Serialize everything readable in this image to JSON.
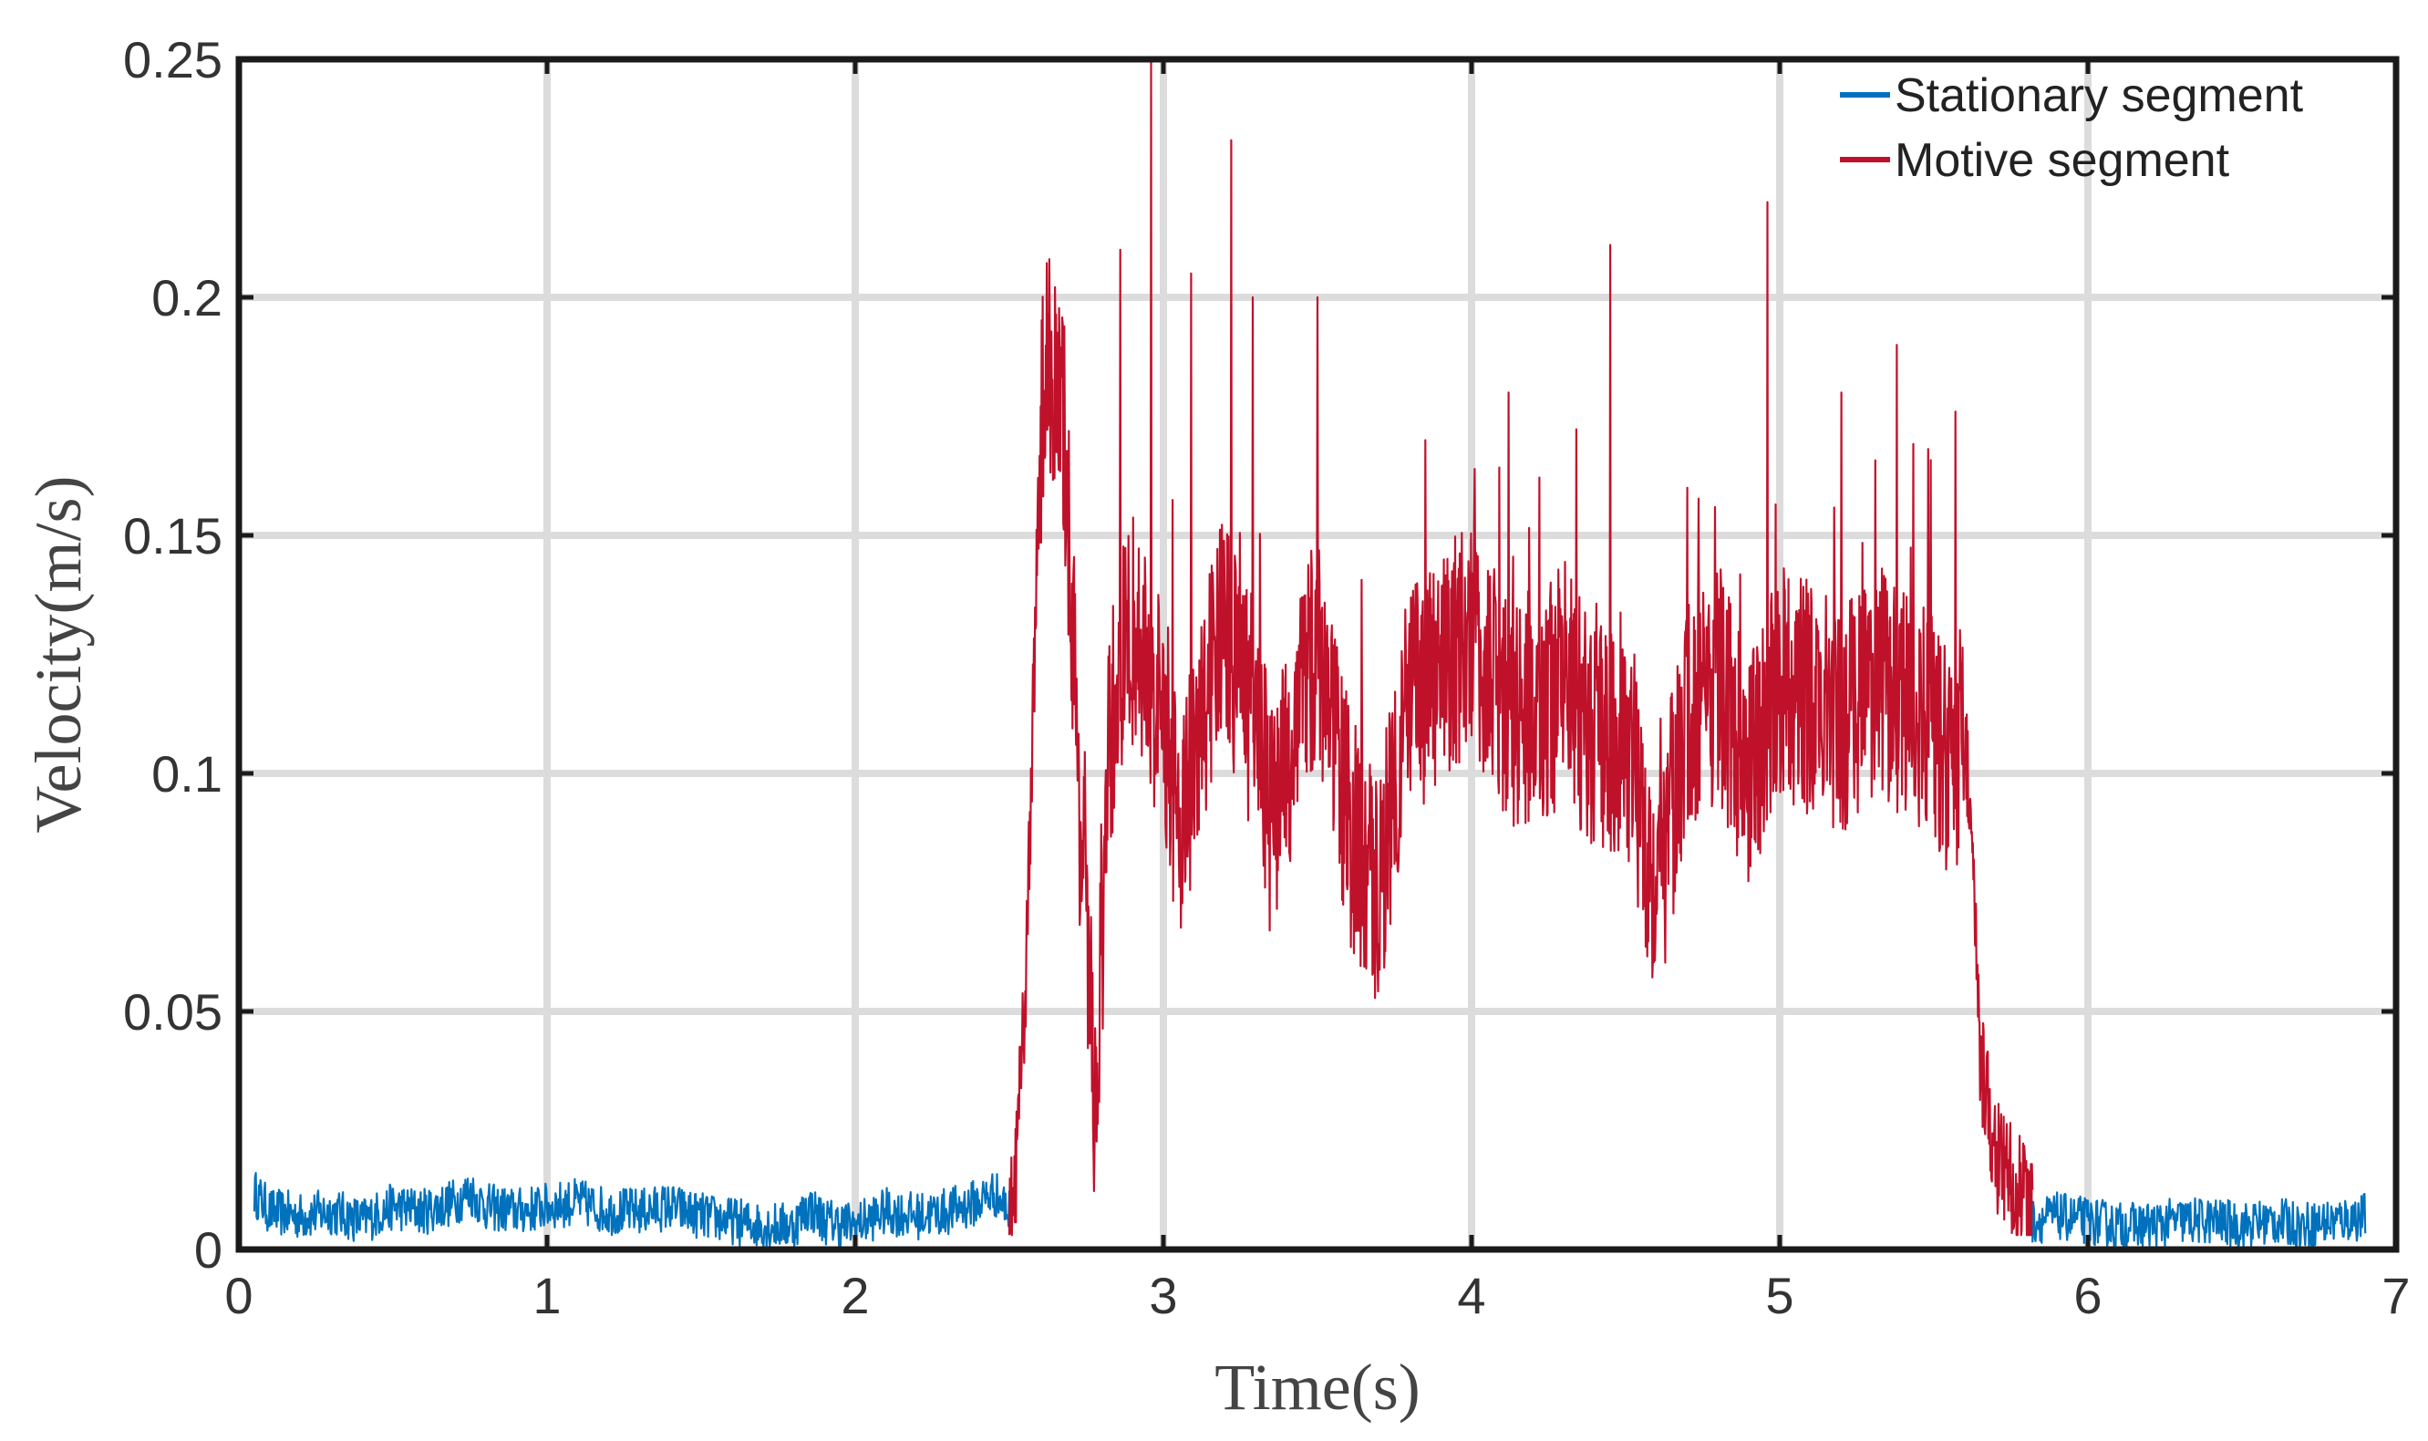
{
  "chart_data": {
    "type": "line",
    "xlabel": "Time(s)",
    "ylabel": "Velocity(m/s)",
    "xlim": [
      0,
      7
    ],
    "ylim": [
      0,
      0.25
    ],
    "x_ticks": [
      0,
      1,
      2,
      3,
      4,
      5,
      6,
      7
    ],
    "y_ticks": [
      0,
      0.05,
      0.1,
      0.15,
      0.2,
      0.25
    ],
    "x_tick_labels": [
      "0",
      "1",
      "2",
      "3",
      "4",
      "5",
      "6",
      "7"
    ],
    "y_tick_labels": [
      "0",
      "0.05",
      "0.1",
      "0.15",
      "0.2",
      "0.25"
    ],
    "grid": true,
    "legend_position": "top-right",
    "series": [
      {
        "name": "Stationary segment",
        "color": "#0072BD",
        "segments": [
          {
            "x": [
              0.05,
              0.1,
              0.2,
              0.3,
              0.4,
              0.5,
              0.6,
              0.7,
              0.75,
              0.8,
              0.9,
              1.0,
              1.1,
              1.2,
              1.3,
              1.4,
              1.5,
              1.6,
              1.7,
              1.8,
              1.85,
              1.9,
              2.0,
              2.1,
              2.2,
              2.3,
              2.4,
              2.45,
              2.5
            ],
            "y": [
              0.012,
              0.008,
              0.007,
              0.008,
              0.006,
              0.009,
              0.008,
              0.01,
              0.012,
              0.009,
              0.008,
              0.009,
              0.01,
              0.008,
              0.008,
              0.009,
              0.007,
              0.006,
              0.005,
              0.005,
              0.009,
              0.006,
              0.005,
              0.008,
              0.007,
              0.008,
              0.01,
              0.012,
              0.008
            ]
          },
          {
            "x": [
              5.82,
              5.9,
              6.0,
              6.1,
              6.2,
              6.3,
              6.4,
              6.5,
              6.6,
              6.7,
              6.8,
              6.9
            ],
            "y": [
              0.006,
              0.007,
              0.006,
              0.005,
              0.005,
              0.006,
              0.006,
              0.005,
              0.006,
              0.005,
              0.006,
              0.007
            ]
          }
        ],
        "noise_amplitude": 0.005
      },
      {
        "name": "Motive segment",
        "color": "#C0112B",
        "x": [
          2.5,
          2.52,
          2.55,
          2.58,
          2.6,
          2.62,
          2.65,
          2.68,
          2.7,
          2.73,
          2.76,
          2.78,
          2.8,
          2.82,
          2.85,
          2.9,
          2.95,
          3.0,
          3.05,
          3.1,
          3.15,
          3.2,
          3.25,
          3.3,
          3.35,
          3.4,
          3.45,
          3.5,
          3.55,
          3.6,
          3.65,
          3.7,
          3.75,
          3.8,
          3.9,
          4.0,
          4.1,
          4.2,
          4.3,
          4.4,
          4.5,
          4.6,
          4.7,
          4.8,
          4.9,
          5.0,
          5.1,
          5.2,
          5.3,
          5.4,
          5.5,
          5.55,
          5.6,
          5.62,
          5.65,
          5.7,
          5.75,
          5.8,
          5.82
        ],
        "y": [
          0.005,
          0.015,
          0.05,
          0.12,
          0.17,
          0.185,
          0.18,
          0.17,
          0.14,
          0.09,
          0.05,
          0.03,
          0.06,
          0.1,
          0.12,
          0.13,
          0.12,
          0.11,
          0.09,
          0.1,
          0.12,
          0.13,
          0.12,
          0.11,
          0.09,
          0.1,
          0.12,
          0.125,
          0.11,
          0.09,
          0.08,
          0.075,
          0.1,
          0.115,
          0.12,
          0.13,
          0.115,
          0.11,
          0.12,
          0.105,
          0.11,
          0.075,
          0.11,
          0.12,
          0.1,
          0.12,
          0.115,
          0.11,
          0.12,
          0.115,
          0.11,
          0.1,
          0.11,
          0.09,
          0.04,
          0.02,
          0.015,
          0.01,
          0.008
        ],
        "peaks": [
          {
            "x": 2.63,
            "y": 0.208
          },
          {
            "x": 2.86,
            "y": 0.21
          },
          {
            "x": 2.96,
            "y": 0.25
          },
          {
            "x": 3.09,
            "y": 0.205
          },
          {
            "x": 3.22,
            "y": 0.233
          },
          {
            "x": 3.29,
            "y": 0.2
          },
          {
            "x": 3.5,
            "y": 0.2
          },
          {
            "x": 3.85,
            "y": 0.17
          },
          {
            "x": 4.12,
            "y": 0.18
          },
          {
            "x": 4.45,
            "y": 0.211
          },
          {
            "x": 4.7,
            "y": 0.16
          },
          {
            "x": 4.96,
            "y": 0.22
          },
          {
            "x": 5.2,
            "y": 0.18
          },
          {
            "x": 5.38,
            "y": 0.19
          },
          {
            "x": 5.57,
            "y": 0.176
          }
        ],
        "noise_amplitude": 0.025
      }
    ]
  }
}
